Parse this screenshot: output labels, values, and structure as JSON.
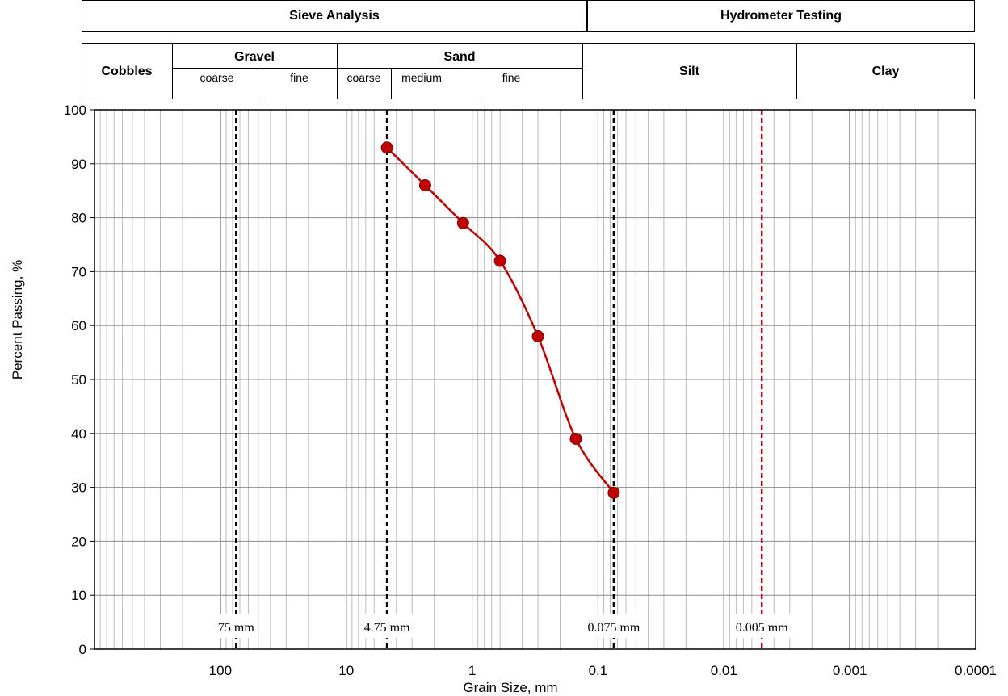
{
  "header": {
    "sieve_analysis": "Sieve Analysis",
    "hydrometer_testing": "Hydrometer Testing",
    "cobbles": "Cobbles",
    "gravel": "Gravel",
    "gravel_coarse": "coarse",
    "gravel_fine": "fine",
    "sand": "Sand",
    "sand_coarse": "coarse",
    "sand_medium": "medium",
    "sand_fine": "fine",
    "silt": "Silt",
    "clay": "Clay"
  },
  "chart_data": {
    "type": "scatter",
    "xlabel": "Grain Size, mm",
    "ylabel": "Percent Passing, %",
    "x_scale": "log",
    "x_reversed": true,
    "xlim": [
      1000,
      0.0001
    ],
    "ylim": [
      0,
      100
    ],
    "x_ticks": [
      {
        "value": 100,
        "label": "100"
      },
      {
        "value": 10,
        "label": "10"
      },
      {
        "value": 1,
        "label": "1"
      },
      {
        "value": 0.1,
        "label": "0.1"
      },
      {
        "value": 0.01,
        "label": "0.01"
      },
      {
        "value": 0.001,
        "label": "0.001"
      },
      {
        "value": 0.0001,
        "label": "0.0001"
      }
    ],
    "y_ticks": [
      0,
      10,
      20,
      30,
      40,
      50,
      60,
      70,
      80,
      90,
      100
    ],
    "grid": true,
    "series": [
      {
        "color": "#c00000",
        "smooth": true,
        "points": [
          {
            "x": 4.75,
            "y": 93
          },
          {
            "x": 2.36,
            "y": 86
          },
          {
            "x": 1.18,
            "y": 79
          },
          {
            "x": 0.6,
            "y": 72
          },
          {
            "x": 0.3,
            "y": 58
          },
          {
            "x": 0.15,
            "y": 39
          },
          {
            "x": 0.075,
            "y": 29
          }
        ]
      }
    ],
    "reference_lines": [
      {
        "x": 75,
        "label": "75 mm",
        "color": "#000000"
      },
      {
        "x": 4.75,
        "label": "4.75 mm",
        "color": "#000000"
      },
      {
        "x": 0.075,
        "label": "0.075 mm",
        "color": "#000000"
      },
      {
        "x": 0.005,
        "label": "0.005 mm",
        "color": "#c00000"
      }
    ]
  }
}
